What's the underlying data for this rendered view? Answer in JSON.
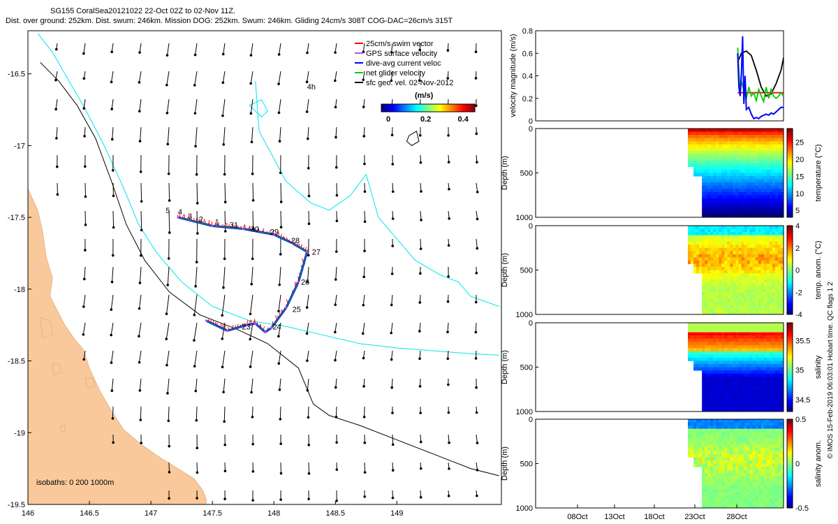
{
  "header": {
    "line1": "SG155 CoralSea20121022 22-Oct 02Z to 02-Nov 11Z.",
    "line2": "Dist. over ground: 252km. Dist. swum: 246km. Mission DOG: 252km. Swum: 246km. Gliding 24cm/s 308T COG-DAC=26cm/s 315T"
  },
  "credit": "© IMOS 15-Feb-2019 06:03:01 Hobart time. QC flags 1  2",
  "colors": {
    "land": "#f9c99b",
    "isobath200": "#00e5ee",
    "isobath1000": "#000000",
    "swim": "#ff0000",
    "gps": "#cc44ff",
    "current": "#0000ff",
    "net": "#00cc00",
    "sfc": "#000000"
  },
  "chart_data": [
    {
      "id": "map",
      "type": "scatter",
      "title": "Glider track map",
      "xlim": [
        146,
        149.85
      ],
      "ylim": [
        -19.5,
        -16.2
      ],
      "xticks": [
        146,
        146.5,
        147,
        147.5,
        148,
        148.5,
        149
      ],
      "xtick_labels": [
        "146",
        "146.5",
        "147",
        "147.5",
        "148",
        "148.5",
        "149"
      ],
      "yticks": [
        -16.5,
        -17,
        -17.5,
        -18,
        -18.5,
        -19,
        -19.5
      ],
      "ytick_labels": [
        "-16.5",
        "-17",
        "-17.5",
        "-18",
        "-18.5",
        "-19",
        "-19.5"
      ],
      "legend": {
        "entries": [
          "25cm/s swim vector",
          "GPS surface velocity",
          "dive-avg current veloc",
          "net glider velocity",
          "sfc geo. vel. 02-Nov-2012"
        ],
        "placement": "top-right"
      },
      "colorbar": {
        "label": "(m/s)",
        "ticks": [
          "0",
          "0.2",
          "0.4"
        ],
        "range": [
          0,
          0.5
        ]
      },
      "isobath_label": "isobaths: 0   200  1000m",
      "track": {
        "lon": [
          147.22,
          147.5,
          147.75,
          148.0,
          148.15,
          148.27,
          148.2,
          148.1,
          147.98,
          147.93,
          147.85,
          147.78,
          147.62,
          147.45
        ],
        "lat": [
          -17.5,
          -17.56,
          -17.58,
          -17.62,
          -17.68,
          -17.74,
          -17.95,
          -18.13,
          -18.27,
          -18.3,
          -18.24,
          -18.25,
          -18.29,
          -18.22
        ]
      },
      "day_labels": [
        {
          "text": "5",
          "lon": 147.12,
          "lat": -17.47
        },
        {
          "text": "4",
          "lon": 147.22,
          "lat": -17.48
        },
        {
          "text": "3",
          "lon": 147.3,
          "lat": -17.51
        },
        {
          "text": "2",
          "lon": 147.39,
          "lat": -17.53
        },
        {
          "text": "1",
          "lon": 147.52,
          "lat": -17.55
        },
        {
          "text": "31",
          "lon": 147.64,
          "lat": -17.57
        },
        {
          "text": "30",
          "lon": 147.81,
          "lat": -17.6
        },
        {
          "text": "29",
          "lon": 147.97,
          "lat": -17.62
        },
        {
          "text": "28",
          "lon": 148.14,
          "lat": -17.68
        },
        {
          "text": "27",
          "lon": 148.31,
          "lat": -17.76
        },
        {
          "text": "26",
          "lon": 148.22,
          "lat": -17.97
        },
        {
          "text": "25",
          "lon": 148.15,
          "lat": -18.16
        },
        {
          "text": "24",
          "lon": 147.99,
          "lat": -18.28
        },
        {
          "text": "23",
          "lon": 147.74,
          "lat": -18.28
        },
        {
          "text": "4h",
          "lon": 148.27,
          "lat": -16.61
        }
      ],
      "isobath_200": [
        {
          "lon": [
            146.08,
            146.2,
            146.3,
            146.45,
            146.62,
            146.78,
            146.9,
            147.05,
            147.25,
            147.5,
            147.8,
            148.1,
            148.4,
            148.7,
            149.0,
            149.3,
            149.6,
            149.83
          ],
          "lat": [
            -16.22,
            -16.35,
            -16.5,
            -16.72,
            -17.0,
            -17.3,
            -17.55,
            -17.75,
            -17.95,
            -18.12,
            -18.22,
            -18.26,
            -18.32,
            -18.38,
            -18.41,
            -18.43,
            -18.45,
            -18.46
          ]
        },
        {
          "lon": [
            147.85,
            147.88,
            148.1,
            148.3,
            148.45,
            148.62,
            148.75,
            148.85,
            149.0,
            149.15,
            149.35,
            149.5,
            149.6,
            149.83
          ],
          "lat": [
            -16.55,
            -16.9,
            -17.25,
            -17.4,
            -17.45,
            -17.35,
            -17.2,
            -17.5,
            -17.65,
            -17.8,
            -17.9,
            -17.95,
            -18.05,
            -18.12
          ]
        },
        {
          "lon": [
            147.8,
            147.9,
            147.95,
            147.9,
            147.8
          ],
          "lat": [
            -16.72,
            -16.68,
            -16.76,
            -16.8,
            -16.72
          ]
        }
      ],
      "isobath_1000": [
        {
          "lon": [
            146.1,
            146.25,
            146.4,
            146.55,
            146.68,
            146.8,
            146.95,
            147.15,
            147.4,
            147.7,
            147.95,
            148.2,
            148.32,
            148.45,
            148.7,
            149.0,
            149.3,
            149.6,
            149.83
          ],
          "lat": [
            -16.42,
            -16.55,
            -16.72,
            -16.95,
            -17.25,
            -17.55,
            -17.8,
            -18.02,
            -18.18,
            -18.28,
            -18.38,
            -18.55,
            -18.8,
            -18.88,
            -18.95,
            -19.05,
            -19.15,
            -19.25,
            -19.3
          ]
        },
        {
          "lon": [
            149.1,
            149.16,
            149.18,
            149.12,
            149.08,
            149.1
          ],
          "lat": [
            -16.93,
            -16.9,
            -16.97,
            -17.0,
            -16.97,
            -16.93
          ]
        }
      ],
      "coastline": {
        "lon": [
          146.0,
          146.08,
          146.12,
          146.15,
          146.2,
          146.18,
          146.24,
          146.3,
          146.38,
          146.45,
          146.5,
          146.58,
          146.68,
          146.78,
          146.92,
          147.05,
          147.2,
          147.35,
          147.42,
          147.45,
          147.45,
          146.0
        ],
        "lat": [
          -17.3,
          -17.45,
          -17.6,
          -17.78,
          -17.92,
          -18.05,
          -18.15,
          -18.25,
          -18.35,
          -18.42,
          -18.55,
          -18.7,
          -18.85,
          -18.98,
          -19.08,
          -19.16,
          -19.24,
          -19.32,
          -19.4,
          -19.46,
          -19.5,
          -19.5
        ]
      },
      "islands": [
        {
          "lon": [
            146.1,
            146.18,
            146.2,
            146.12,
            146.1
          ],
          "lat": [
            -18.2,
            -18.22,
            -18.32,
            -18.34,
            -18.2
          ]
        },
        {
          "lon": [
            146.2,
            146.25,
            146.27,
            146.21,
            146.2
          ],
          "lat": [
            -18.52,
            -18.52,
            -18.58,
            -18.6,
            -18.52
          ]
        },
        {
          "lon": [
            146.47,
            146.53,
            146.54,
            146.48,
            146.47
          ],
          "lat": [
            -18.62,
            -18.62,
            -18.68,
            -18.69,
            -18.62
          ]
        },
        {
          "lon": [
            146.27,
            146.3,
            146.3,
            146.27,
            146.27
          ],
          "lat": [
            -18.95,
            -18.95,
            -18.99,
            -18.99,
            -18.95
          ]
        }
      ]
    },
    {
      "id": "velocity",
      "type": "line",
      "ylabel": "velocity magnitude (m/s)",
      "ylim": [
        0,
        0.8
      ],
      "yticks": [
        0,
        0.2,
        0.4,
        0.6,
        0.8
      ],
      "ytick_labels": [
        "0",
        "0.2",
        "0.4",
        "0.6",
        "0.8"
      ],
      "xlim": [
        0,
        100
      ],
      "series": [
        {
          "name": "sfc geo. vel.",
          "color": "#000000",
          "x": [
            81.5,
            83,
            85,
            87,
            89,
            91,
            93,
            95,
            97,
            99,
            100
          ],
          "values": [
            0.52,
            0.6,
            0.62,
            0.58,
            0.45,
            0.3,
            0.22,
            0.24,
            0.33,
            0.45,
            0.56
          ]
        },
        {
          "name": "swim 25cm/s",
          "color": "#ff0000",
          "x": [
            81.5,
            100
          ],
          "values": [
            0.25,
            0.25
          ]
        },
        {
          "name": "net glider velocity",
          "color": "#00cc00",
          "x": [
            81.5,
            82,
            82.5,
            83,
            84,
            85,
            86,
            87,
            88,
            89,
            90,
            91,
            92,
            93,
            94,
            95,
            96,
            97,
            98,
            99,
            100
          ],
          "values": [
            0.65,
            0.45,
            0.25,
            0.35,
            0.27,
            0.2,
            0.3,
            0.22,
            0.25,
            0.18,
            0.28,
            0.22,
            0.17,
            0.3,
            0.2,
            0.28,
            0.22,
            0.2,
            0.22,
            0.25,
            0.22
          ]
        },
        {
          "name": "dive-avg current",
          "color": "#0000ff",
          "x": [
            81.5,
            82,
            82.5,
            83,
            83.5,
            84,
            84.5,
            85,
            86,
            87,
            88,
            89,
            90,
            91,
            92,
            93,
            94,
            95,
            96,
            97,
            98,
            99,
            100
          ],
          "values": [
            0.6,
            0.3,
            0.22,
            0.42,
            0.75,
            0.15,
            0.4,
            0.1,
            0.12,
            0.06,
            0.02,
            0.03,
            0.02,
            0.04,
            0.05,
            0.06,
            0.05,
            0.07,
            0.06,
            0.08,
            0.1,
            0.12,
            0.12
          ]
        }
      ]
    },
    {
      "id": "temperature",
      "type": "heatmap",
      "ylabel": "Depth (m)",
      "ylim": [
        0,
        1000
      ],
      "yticks": [
        0,
        500,
        1000
      ],
      "ytick_labels": [
        "0",
        "500",
        "1000"
      ],
      "colorbar_label": "temperature (°C)",
      "colorbar_ticks": [
        "5",
        "10",
        "15",
        "20",
        "25"
      ],
      "colorbar_range": [
        3,
        29
      ]
    },
    {
      "id": "temp_anom",
      "type": "heatmap",
      "ylabel": "Depth (m)",
      "ylim": [
        0,
        1000
      ],
      "yticks": [
        0,
        500,
        1000
      ],
      "ytick_labels": [
        "0",
        "500",
        "1000"
      ],
      "colorbar_label": "temp. anom. (°C)",
      "colorbar_ticks": [
        "-4",
        "-2",
        "0",
        "2",
        "4"
      ],
      "colorbar_range": [
        -4,
        4
      ]
    },
    {
      "id": "salinity",
      "type": "heatmap",
      "ylabel": "Depth (m)",
      "ylim": [
        0,
        1000
      ],
      "yticks": [
        0,
        500,
        1000
      ],
      "ytick_labels": [
        "0",
        "500",
        "1000"
      ],
      "colorbar_label": "salinity",
      "colorbar_ticks": [
        "34.5",
        "35",
        "35.5"
      ],
      "colorbar_range": [
        34.3,
        35.8
      ]
    },
    {
      "id": "sal_anom",
      "type": "heatmap",
      "ylabel": "Depth (m)",
      "ylim": [
        0,
        1000
      ],
      "yticks": [
        0,
        500,
        1000
      ],
      "ytick_labels": [
        "0",
        "500",
        "1000"
      ],
      "colorbar_label": "salinity anom.",
      "colorbar_ticks": [
        "-0.5",
        "0",
        "0.5"
      ],
      "colorbar_range": [
        -0.5,
        0.5
      ],
      "xtick_labels": [
        "08Oct",
        "13Oct",
        "18Oct",
        "23Oct",
        "28Oct"
      ]
    }
  ]
}
